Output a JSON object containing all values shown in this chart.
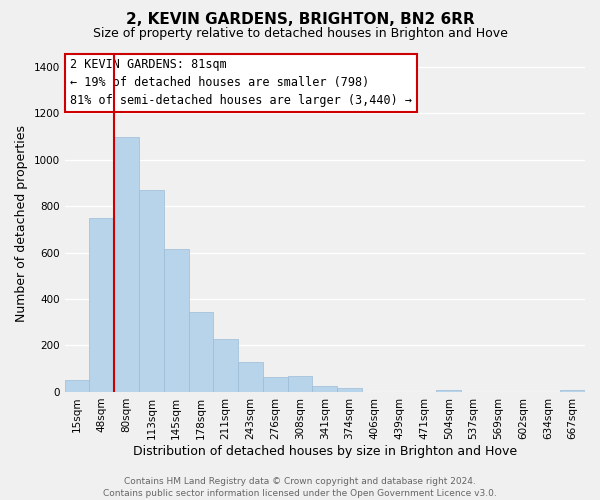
{
  "title": "2, KEVIN GARDENS, BRIGHTON, BN2 6RR",
  "subtitle": "Size of property relative to detached houses in Brighton and Hove",
  "xlabel": "Distribution of detached houses by size in Brighton and Hove",
  "ylabel": "Number of detached properties",
  "footer_lines": [
    "Contains HM Land Registry data © Crown copyright and database right 2024.",
    "Contains public sector information licensed under the Open Government Licence v3.0."
  ],
  "bin_labels": [
    "15sqm",
    "48sqm",
    "80sqm",
    "113sqm",
    "145sqm",
    "178sqm",
    "211sqm",
    "243sqm",
    "276sqm",
    "308sqm",
    "341sqm",
    "374sqm",
    "406sqm",
    "439sqm",
    "471sqm",
    "504sqm",
    "537sqm",
    "569sqm",
    "602sqm",
    "634sqm",
    "667sqm"
  ],
  "bar_values": [
    50,
    750,
    1095,
    870,
    615,
    345,
    228,
    130,
    65,
    70,
    25,
    18,
    0,
    0,
    0,
    10,
    0,
    0,
    0,
    0,
    10
  ],
  "bar_color": "#b8d4eb",
  "bar_edge_color": "#9bbcd8",
  "reference_line_color": "#cc0000",
  "annotation_box_text": "2 KEVIN GARDENS: 81sqm\n← 19% of detached houses are smaller (798)\n81% of semi-detached houses are larger (3,440) →",
  "ylim": [
    0,
    1450
  ],
  "yticks": [
    0,
    200,
    400,
    600,
    800,
    1000,
    1200,
    1400
  ],
  "background_color": "#f0f0f0",
  "grid_color": "#ffffff",
  "title_fontsize": 11,
  "subtitle_fontsize": 9,
  "axis_label_fontsize": 9,
  "tick_fontsize": 7.5,
  "annotation_fontsize": 8.5,
  "footer_fontsize": 6.5
}
